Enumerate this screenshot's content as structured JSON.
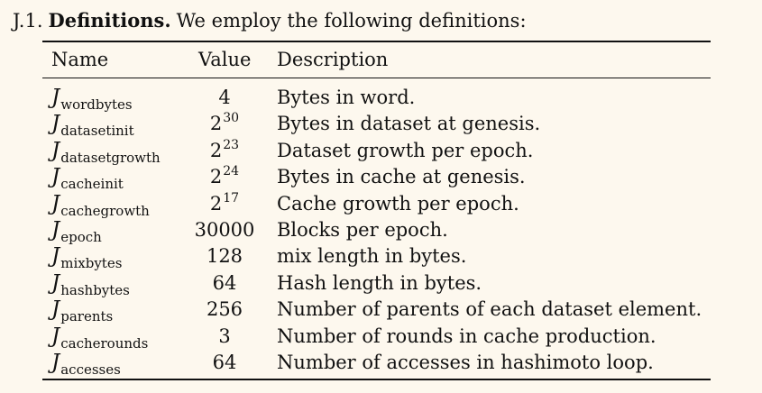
{
  "section": {
    "number": "J.1.",
    "title": "Definitions.",
    "intro": "We employ the following definitions:"
  },
  "table": {
    "headers": {
      "name": "Name",
      "value": "Value",
      "description": "Description"
    },
    "rows": [
      {
        "symbol": "J",
        "subscript": "wordbytes",
        "base": "4",
        "exponent": "",
        "description": "Bytes in word."
      },
      {
        "symbol": "J",
        "subscript": "datasetinit",
        "base": "2",
        "exponent": "30",
        "description": "Bytes in dataset at genesis."
      },
      {
        "symbol": "J",
        "subscript": "datasetgrowth",
        "base": "2",
        "exponent": "23",
        "description": "Dataset growth per epoch."
      },
      {
        "symbol": "J",
        "subscript": "cacheinit",
        "base": "2",
        "exponent": "24",
        "description": "Bytes in cache at genesis."
      },
      {
        "symbol": "J",
        "subscript": "cachegrowth",
        "base": "2",
        "exponent": "17",
        "description": "Cache growth per epoch."
      },
      {
        "symbol": "J",
        "subscript": "epoch",
        "base": "30000",
        "exponent": "",
        "description": "Blocks per epoch."
      },
      {
        "symbol": "J",
        "subscript": "mixbytes",
        "base": "128",
        "exponent": "",
        "description": "mix length in bytes."
      },
      {
        "symbol": "J",
        "subscript": "hashbytes",
        "base": "64",
        "exponent": "",
        "description": "Hash length in bytes."
      },
      {
        "symbol": "J",
        "subscript": "parents",
        "base": "256",
        "exponent": "",
        "description": "Number of parents of each dataset element."
      },
      {
        "symbol": "J",
        "subscript": "cacherounds",
        "base": "3",
        "exponent": "",
        "description": "Number of rounds in cache production."
      },
      {
        "symbol": "J",
        "subscript": "accesses",
        "base": "64",
        "exponent": "",
        "description": "Number of accesses in hashimoto loop."
      }
    ]
  }
}
